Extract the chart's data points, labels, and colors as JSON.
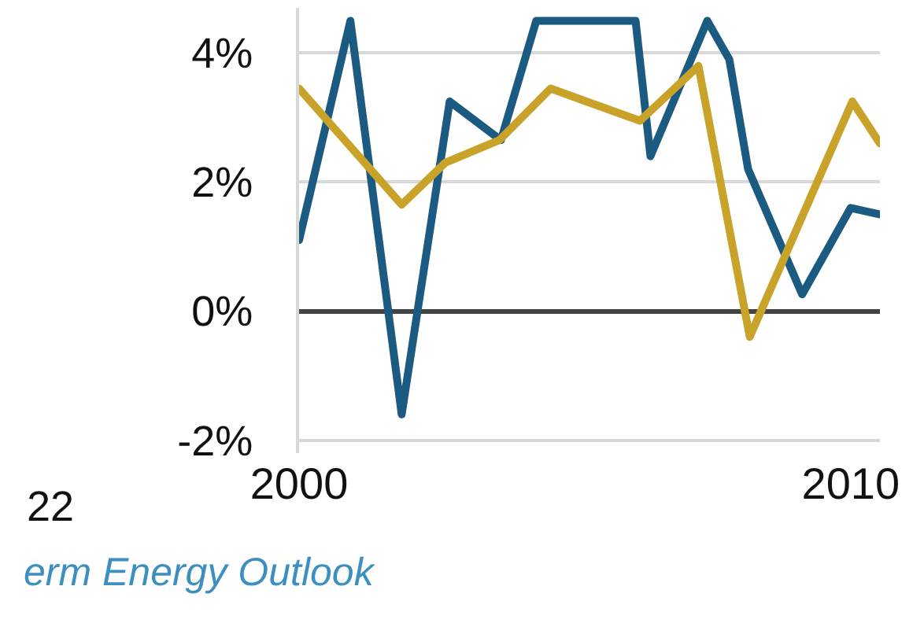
{
  "chart_data": {
    "type": "line",
    "x": [
      2000,
      2000.93,
      2001.86,
      2002.73,
      2003.66,
      2004.3,
      2006.1,
      2006.37,
      2007.4,
      2007.8,
      2008.14,
      2009.12,
      2010,
      2010.53
    ],
    "series": [
      {
        "color": "#1b5b82",
        "values": [
          1.1,
          4.5,
          -1.6,
          3.25,
          2.65,
          4.5,
          4.5,
          2.4,
          4.5,
          3.9,
          2.2,
          0.26,
          1.6,
          1.5
        ]
      },
      {
        "color": "#c9a229",
        "x": [
          2000,
          2001.86,
          2002.65,
          2003.63,
          2004.56,
          2006.18,
          2007.24,
          2008.17,
          2010.03,
          2010.53
        ],
        "values": [
          3.45,
          1.65,
          2.3,
          2.65,
          3.45,
          2.95,
          3.8,
          -0.4,
          3.25,
          2.6
        ]
      }
    ],
    "xlim": [
      2000,
      2010.53
    ],
    "xticks": [
      2000,
      2010
    ],
    "ylim": [
      -2.2,
      4.7
    ],
    "yticks": [
      {
        "value": -2,
        "label": "-2%"
      },
      {
        "value": 0,
        "label": "0%"
      },
      {
        "value": 2,
        "label": "2%"
      },
      {
        "value": 4,
        "label": "4%"
      }
    ],
    "grid": "y",
    "marker": "none",
    "line_style": "solid",
    "annotations": [
      "22",
      "erm Energy Outlook"
    ]
  }
}
